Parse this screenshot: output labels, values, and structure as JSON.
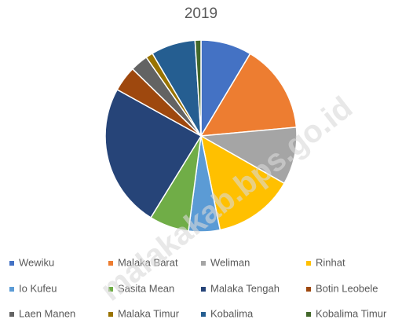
{
  "chart_data": {
    "type": "pie",
    "title": "2019",
    "categories": [
      "Wewiku",
      "Malaka Barat",
      "Weliman",
      "Rinhat",
      "Io Kufeu",
      "Sasita Mean",
      "Malaka Tengah",
      "Botin Leobele",
      "Laen Manen",
      "Malaka Timur",
      "Kobalima",
      "Kobalima Timur"
    ],
    "values": [
      8.6,
      15,
      9.7,
      13.6,
      5.3,
      6.7,
      24.3,
      4.3,
      3,
      1.2,
      7.5,
      1
    ],
    "colors": [
      "#4472c4",
      "#ed7d31",
      "#a5a5a5",
      "#ffc000",
      "#5b9bd5",
      "#70ad47",
      "#264478",
      "#9e480e",
      "#636363",
      "#997300",
      "#255e91",
      "#43682b"
    ],
    "legend": "bottom"
  },
  "watermark": "malakakab.bps.go.id"
}
